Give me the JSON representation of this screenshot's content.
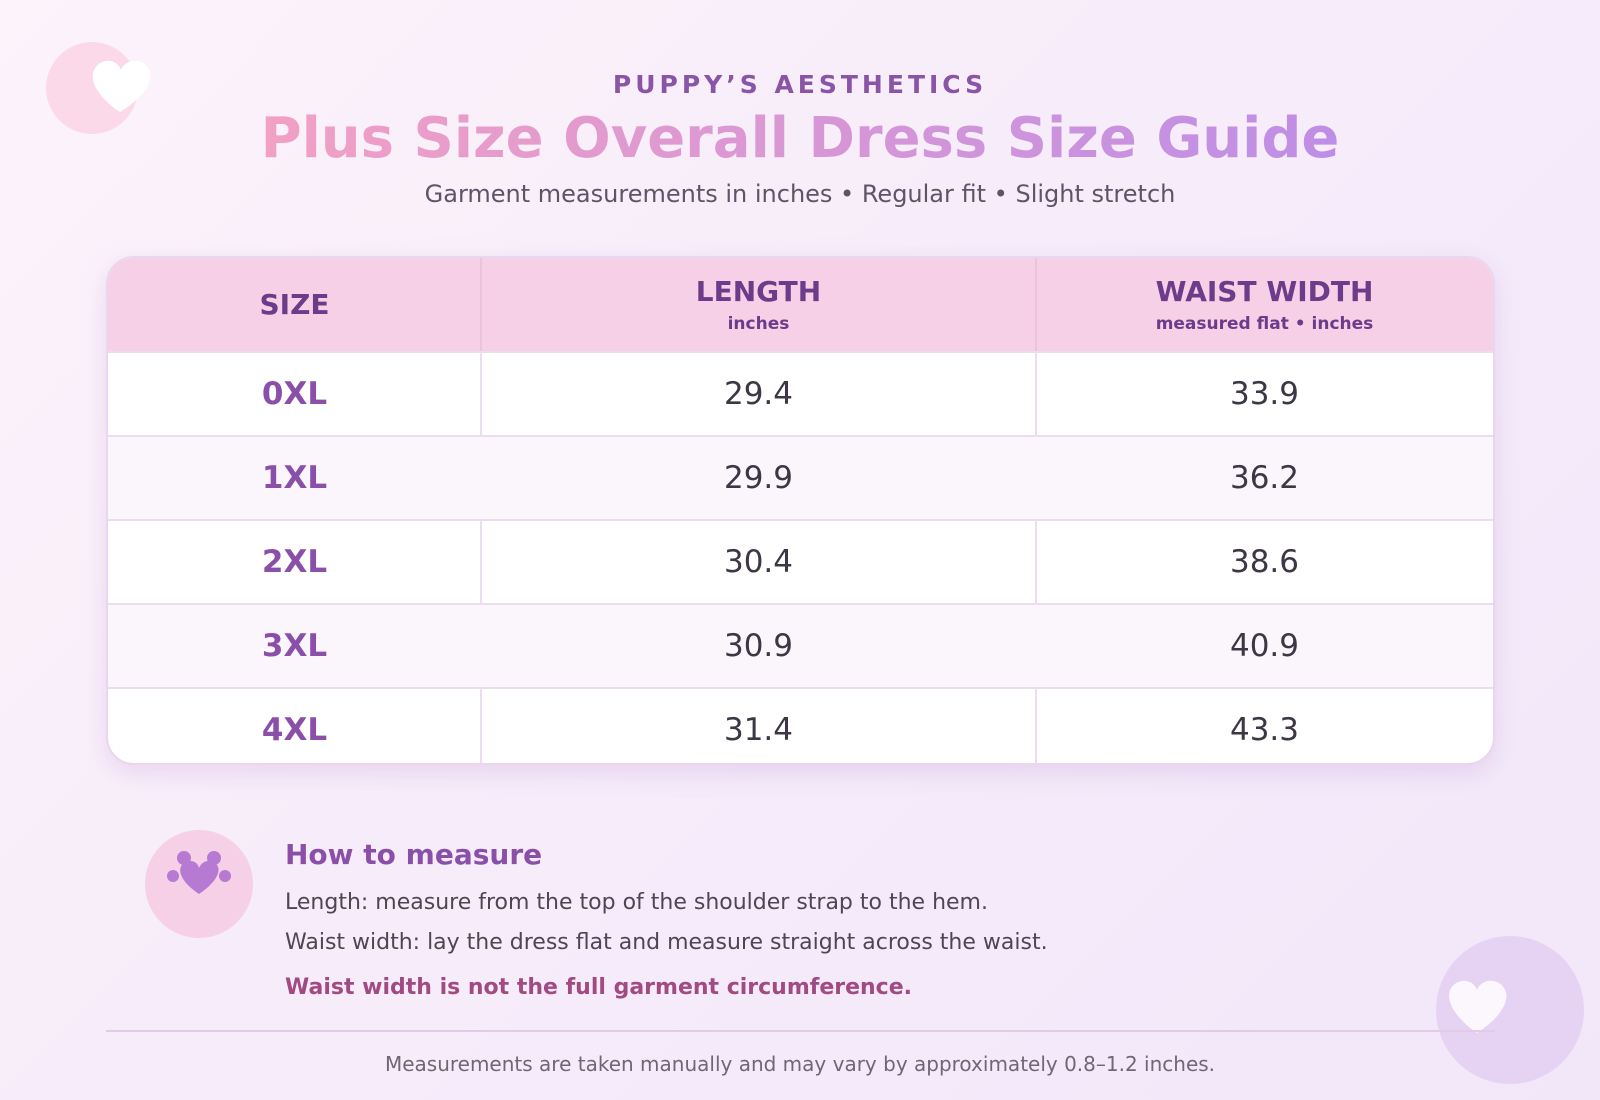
{
  "header": {
    "brand": "PUPPY’S AESTHETICS",
    "title": "Plus Size Overall Dress Size Guide",
    "subtitle": "Garment measurements in inches • Regular fit • Slight stretch"
  },
  "table": {
    "columns": [
      {
        "name": "SIZE"
      },
      {
        "name": "LENGTH",
        "unit": "inches"
      },
      {
        "name": "WAIST WIDTH",
        "unit": "measured flat • inches"
      }
    ],
    "rows": [
      [
        "0XL",
        29.4,
        33.9
      ],
      [
        "1XL",
        29.9,
        36.2
      ],
      [
        "2XL",
        30.4,
        38.6
      ],
      [
        "3XL",
        30.9,
        40.9
      ],
      [
        "4XL",
        31.4,
        43.3
      ]
    ]
  },
  "note": {
    "title": "How to measure",
    "lines": [
      "Length: measure from the top of the shoulder strap to the hem.",
      "Waist width: lay the dress flat and measure straight across the waist."
    ],
    "warning": "Waist width is not the full garment circumference."
  },
  "footer": "Measurements are taken manually and may vary by approximately 0.8–1.2 inches."
}
